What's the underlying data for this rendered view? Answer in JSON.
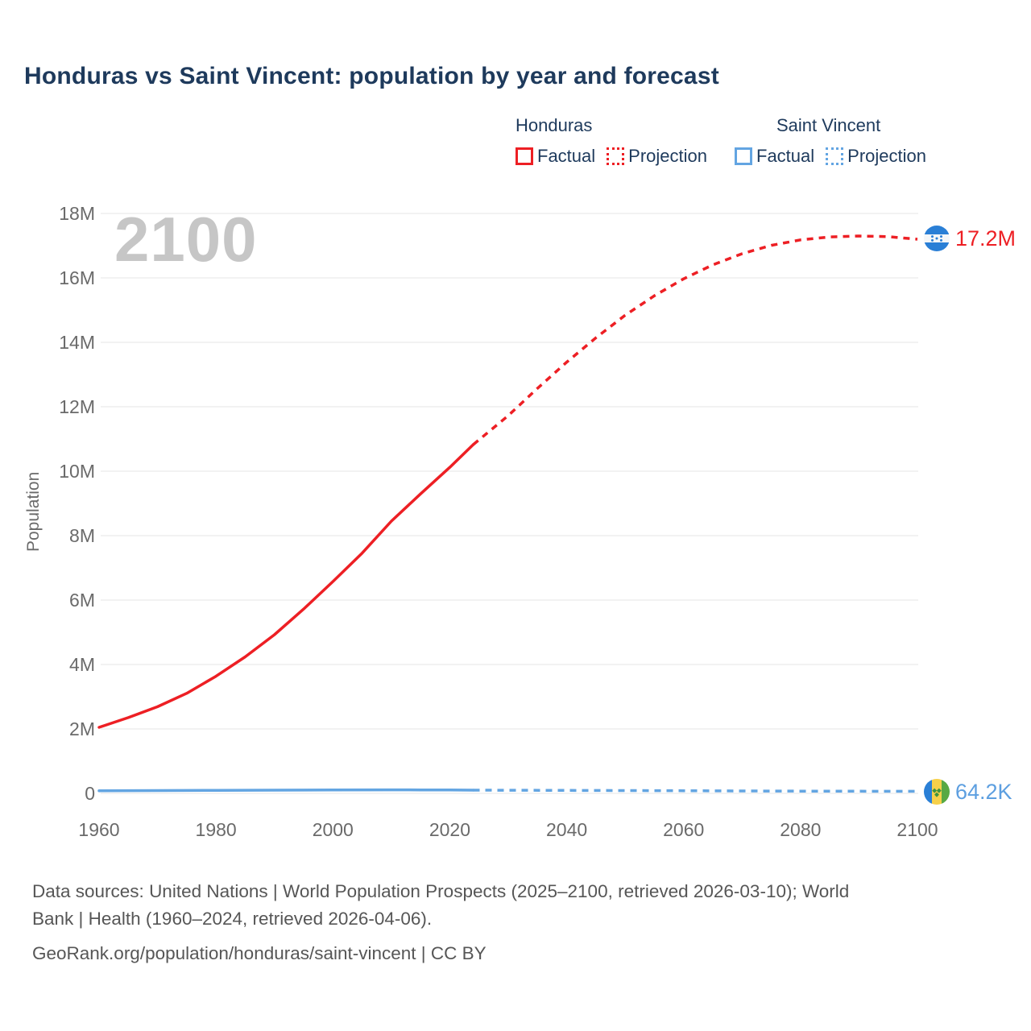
{
  "title": "Honduras vs Saint Vincent: population by year and forecast",
  "watermark": "2100",
  "legend": {
    "groups": [
      {
        "name": "Honduras",
        "color": "#ed1f24",
        "items": [
          {
            "label": "Factual",
            "style": "solid"
          },
          {
            "label": "Projection",
            "style": "dotted"
          }
        ]
      },
      {
        "name": "Saint Vincent",
        "color": "#63a5e2",
        "items": [
          {
            "label": "Factual",
            "style": "solid"
          },
          {
            "label": "Projection",
            "style": "dotted"
          }
        ]
      }
    ]
  },
  "chart_data": {
    "type": "line",
    "title": "Honduras vs Saint Vincent: population by year and forecast",
    "xlabel": "",
    "ylabel": "Population",
    "xlim": [
      1960,
      2100
    ],
    "ylim": [
      0,
      18000000
    ],
    "grid": "horizontal",
    "legend_position": "top-right",
    "x_ticks": [
      {
        "value": 1960,
        "label": "1960"
      },
      {
        "value": 1980,
        "label": "1980"
      },
      {
        "value": 2000,
        "label": "2000"
      },
      {
        "value": 2020,
        "label": "2020"
      },
      {
        "value": 2040,
        "label": "2040"
      },
      {
        "value": 2060,
        "label": "2060"
      },
      {
        "value": 2080,
        "label": "2080"
      },
      {
        "value": 2100,
        "label": "2100"
      }
    ],
    "y_ticks": [
      {
        "value": 0,
        "label": "0"
      },
      {
        "value": 2000000,
        "label": "2M"
      },
      {
        "value": 4000000,
        "label": "4M"
      },
      {
        "value": 6000000,
        "label": "6M"
      },
      {
        "value": 8000000,
        "label": "8M"
      },
      {
        "value": 10000000,
        "label": "10M"
      },
      {
        "value": 12000000,
        "label": "12M"
      },
      {
        "value": 14000000,
        "label": "14M"
      },
      {
        "value": 16000000,
        "label": "16M"
      },
      {
        "value": 18000000,
        "label": "18M"
      }
    ],
    "series": [
      {
        "name": "Honduras Factual",
        "color": "#ed1f24",
        "style": "solid",
        "points": [
          [
            1960,
            2050000
          ],
          [
            1965,
            2353000
          ],
          [
            1970,
            2691000
          ],
          [
            1975,
            3108000
          ],
          [
            1980,
            3634000
          ],
          [
            1985,
            4238000
          ],
          [
            1990,
            4924000
          ],
          [
            1995,
            5722000
          ],
          [
            2000,
            6575000
          ],
          [
            2005,
            7458000
          ],
          [
            2010,
            8451000
          ],
          [
            2015,
            9294000
          ],
          [
            2020,
            10121000
          ],
          [
            2024,
            10826000
          ]
        ]
      },
      {
        "name": "Honduras Projection",
        "color": "#ed1f24",
        "style": "dashed",
        "points": [
          [
            2024,
            10826000
          ],
          [
            2030,
            11724000
          ],
          [
            2035,
            12573000
          ],
          [
            2040,
            13384000
          ],
          [
            2045,
            14142000
          ],
          [
            2050,
            14840000
          ],
          [
            2055,
            15446000
          ],
          [
            2060,
            15970000
          ],
          [
            2065,
            16404000
          ],
          [
            2070,
            16750000
          ],
          [
            2075,
            17010000
          ],
          [
            2080,
            17180000
          ],
          [
            2085,
            17270000
          ],
          [
            2090,
            17300000
          ],
          [
            2095,
            17280000
          ],
          [
            2100,
            17200000
          ]
        ]
      },
      {
        "name": "Saint Vincent Factual",
        "color": "#63a5e2",
        "style": "solid",
        "points": [
          [
            1960,
            80900
          ],
          [
            1970,
            87800
          ],
          [
            1980,
            93900
          ],
          [
            1990,
            99200
          ],
          [
            2000,
            104400
          ],
          [
            2010,
            109300
          ],
          [
            2015,
            108300
          ],
          [
            2020,
            104600
          ],
          [
            2024,
            100600
          ]
        ]
      },
      {
        "name": "Saint Vincent Projection",
        "color": "#63a5e2",
        "style": "dashed",
        "points": [
          [
            2024,
            100600
          ],
          [
            2030,
            97500
          ],
          [
            2040,
            92800
          ],
          [
            2050,
            87500
          ],
          [
            2060,
            81700
          ],
          [
            2070,
            75800
          ],
          [
            2080,
            71000
          ],
          [
            2090,
            67300
          ],
          [
            2100,
            64200
          ]
        ]
      }
    ],
    "end_labels": [
      {
        "text": "17.2M",
        "country": "Honduras",
        "color": "#ed1f24"
      },
      {
        "text": "64.2K",
        "country": "Saint Vincent",
        "color": "#5d9fe0"
      }
    ]
  },
  "flags": {
    "honduras": {
      "blue": "#2a7fd6",
      "white": "#f4f6f8"
    },
    "saint_vincent": {
      "blue": "#2a7fd6",
      "yellow": "#f6d04a",
      "green": "#58a944",
      "diamond": "#3f9440"
    }
  },
  "footer": {
    "lines": [
      "Data sources: United Nations | World Population Prospects (2025–2100, retrieved 2026-03-10); World",
      "Bank | Health (1960–2024, retrieved 2026-04-06).",
      "GeoRank.org/population/honduras/saint-vincent | CC BY"
    ]
  }
}
